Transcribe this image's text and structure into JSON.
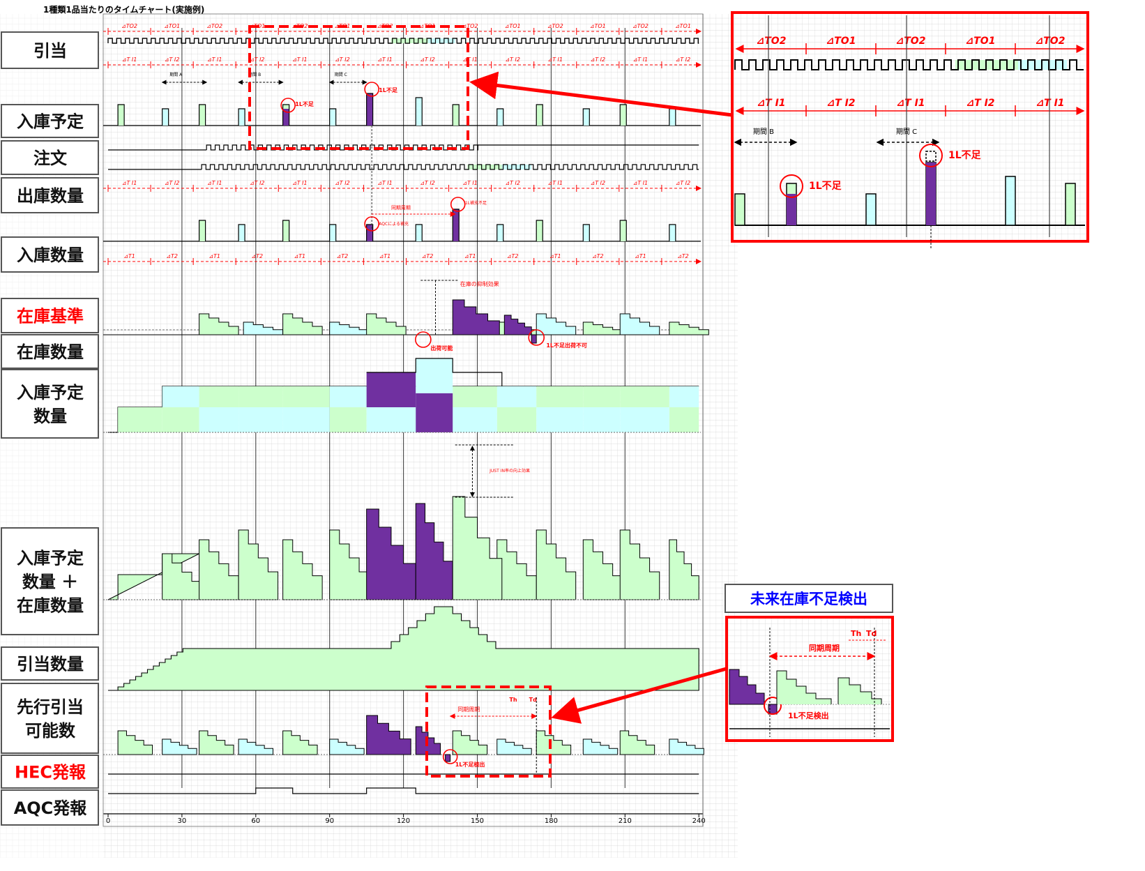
{
  "title": "1種類1品当たりのタイムチャート(実施例)",
  "row_labels": [
    {
      "text": "引当",
      "red": false
    },
    {
      "text": "入庫予定",
      "red": false
    },
    {
      "text": "注文",
      "red": false
    },
    {
      "text": "出庫数量",
      "red": false
    },
    {
      "text": "入庫数量",
      "red": false
    },
    {
      "text": "在庫基準",
      "red": true
    },
    {
      "text": "在庫数量",
      "red": false
    },
    {
      "text": "入庫予定\n数量",
      "red": false
    },
    {
      "text": "入庫予定\n数量 ＋\n在庫数量",
      "red": false
    },
    {
      "text": "引当数量",
      "red": false
    },
    {
      "text": "先行引当\n可能数",
      "red": false
    },
    {
      "text": "HEC発報",
      "red": true
    },
    {
      "text": "AQC発報",
      "red": false
    }
  ],
  "x_ticks": [
    "0",
    "30",
    "60",
    "90",
    "120",
    "150",
    "180",
    "210",
    "240"
  ],
  "interval_labels": {
    "to_row": [
      "⊿TO2",
      "⊿TO1",
      "⊿TO2",
      "⊿TO1",
      "⊿TO2",
      "⊿TO1",
      "⊿TO2",
      "⊿TO1",
      "⊿TO2",
      "⊿TO1",
      "⊿TO2",
      "⊿TO1",
      "⊿TO2",
      "⊿TO1"
    ],
    "ti_row": [
      "⊿T I1",
      "⊿T I2",
      "⊿T I1",
      "⊿T I2",
      "⊿T I1",
      "⊿T I2",
      "⊿T I1",
      "⊿T I2",
      "⊿T I1",
      "⊿T I2",
      "⊿T I1",
      "⊿T I2",
      "⊿T I1",
      "⊿T I2"
    ],
    "t_row": [
      "⊿T1",
      "⊿T2",
      "⊿T1",
      "⊿T2",
      "⊿T1",
      "⊿T2",
      "⊿T1",
      "⊿T2",
      "⊿T1",
      "⊿T2",
      "⊿T1",
      "⊿T2",
      "⊿T1",
      "⊿T2"
    ]
  },
  "annotations": {
    "period_a": "期間 A",
    "period_b": "期間 B",
    "period_c": "期間 C",
    "short_1l": "1L不足",
    "sync_cycle": "同期周期",
    "aqc_replenish": "AQCによる補充",
    "short_replenish": "1L補充不足",
    "inventory_suppression": "在庫の抑制効果",
    "shipment_ok": "出荷可能",
    "short_no_ship": "1L不足出荷不可",
    "just_in": "JUST IN率の向上効果",
    "short_detect": "1L不足検出",
    "th": "Th",
    "td": "Td"
  },
  "zoom_top": {
    "to_labels": [
      "⊿TO2",
      "⊿TO1",
      "⊿TO2",
      "⊿TO1",
      "⊿TO2"
    ],
    "ti_labels": [
      "⊿T I1",
      "⊿T I2",
      "⊿T I1",
      "⊿T I2",
      "⊿T I1"
    ],
    "period_b": "期間 B",
    "period_c": "期間 C",
    "short_1": "1L不足",
    "short_2": "1L不足"
  },
  "zoom_bottom": {
    "title": "未来在庫不足検出",
    "sync_cycle": "同期周期",
    "th": "Th",
    "td": "Td",
    "short_detect": "1L不足検出"
  },
  "colors": {
    "light_green": "#ccffcc",
    "light_cyan": "#ccffff",
    "purple": "#7030a0",
    "red": "#ff0000",
    "blue": "#0000ff",
    "grid": "#c0c0c0",
    "black": "#000000"
  },
  "chart_data": {
    "type": "timing",
    "x_range": [
      0,
      240
    ],
    "x_ticks": [
      0,
      30,
      60,
      90,
      120,
      150,
      180,
      210,
      240
    ],
    "grid": true,
    "vertical_markers_x": [
      30,
      60,
      90,
      120,
      150,
      180,
      210
    ]
  }
}
